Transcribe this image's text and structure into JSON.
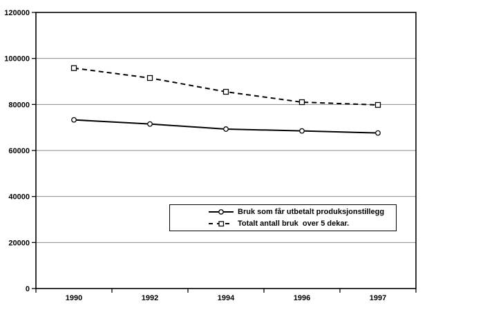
{
  "chart_data": {
    "type": "line",
    "title": "",
    "xlabel": "",
    "ylabel": "",
    "categories": [
      "1990",
      "1992",
      "1994",
      "1996",
      "1997"
    ],
    "series": [
      {
        "name": "Bruk som får utbetalt produksjonstillegg",
        "values": [
          73300,
          71500,
          69300,
          68500,
          67600
        ],
        "line_style": "solid",
        "marker": "circle"
      },
      {
        "name": "Totalt antall bruk  over 5 dekar.",
        "values": [
          95800,
          91500,
          85500,
          81000,
          79800
        ],
        "line_style": "dashed",
        "marker": "square"
      }
    ],
    "ylim": [
      0,
      120000
    ],
    "ytick_step": 20000,
    "ytick_labels": [
      "0",
      "20000",
      "40000",
      "60000",
      "80000",
      "100000",
      "120000"
    ],
    "grid": true,
    "legend_position": "inside-lower-center",
    "colors": {
      "line": "#000000",
      "grid": "#888888",
      "axis": "#000000",
      "marker_fill": "#ffffff",
      "background": "#ffffff"
    }
  }
}
